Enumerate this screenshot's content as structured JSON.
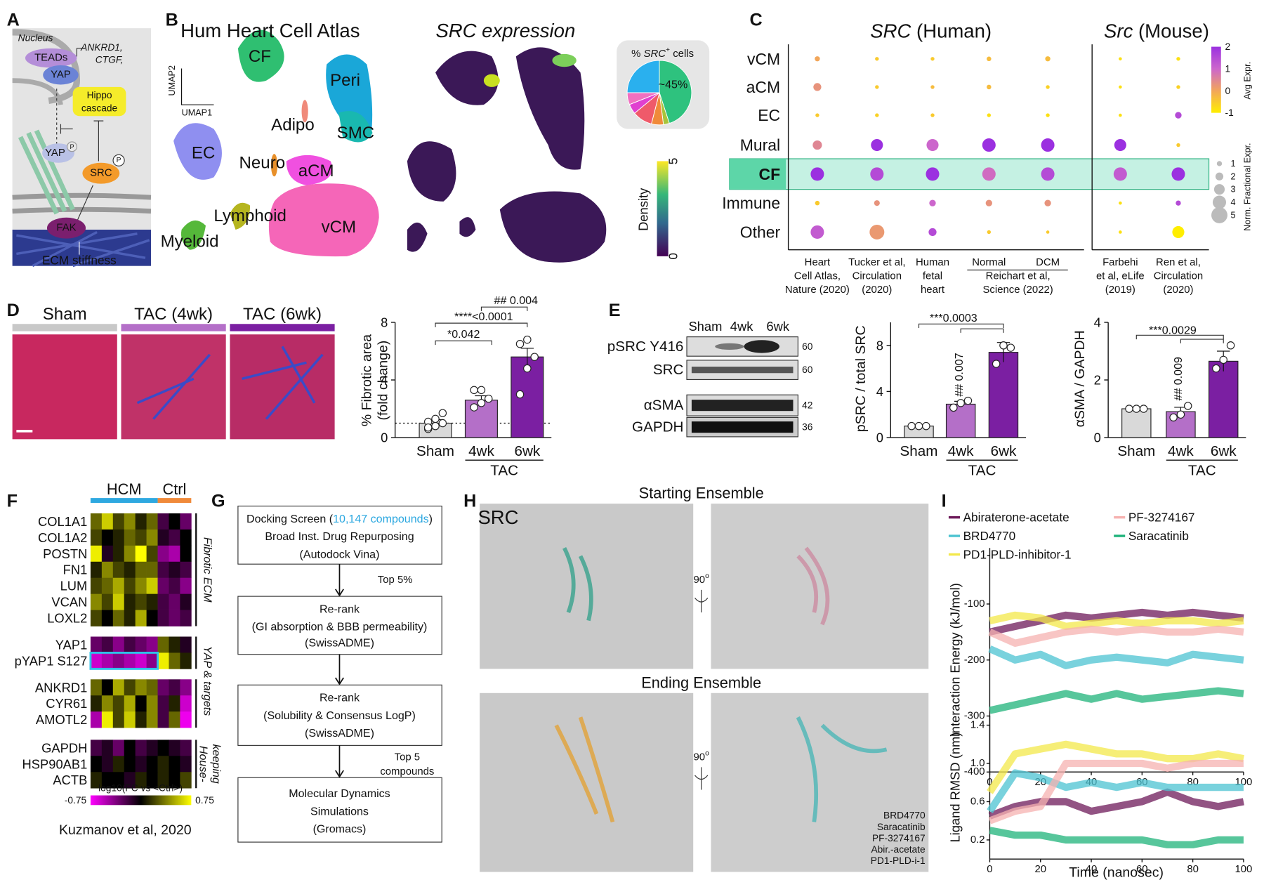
{
  "panel_letters": [
    "A",
    "B",
    "C",
    "D",
    "E",
    "F",
    "G",
    "H",
    "I"
  ],
  "a": {
    "nucleus": "Nucleus",
    "teads": "TEADs",
    "yap": "YAP",
    "targets": [
      "ANKRD1,",
      "CTGF,"
    ],
    "hippo": [
      "Hippo",
      "cascade"
    ],
    "yap_inactive": "YAP",
    "phospho": "P",
    "src": "SRC",
    "fak": "FAK",
    "ecm": "ECM stiffness"
  },
  "b": {
    "title": "Hum Heart Cell Atlas",
    "expr_title": "SRC expression",
    "umap": [
      "UMAP2",
      "UMAP1"
    ],
    "clusters": [
      "CF",
      "Peri",
      "SMC",
      "Adipo",
      "EC",
      "Neuro",
      "aCM",
      "Lymphoid",
      "Myeloid",
      "vCM"
    ],
    "pie": {
      "title": [
        "% ",
        "SRC",
        "+",
        " cells"
      ],
      "label": "~45%",
      "values": [
        45,
        3,
        6,
        10,
        5,
        6,
        25
      ],
      "colors": [
        "#2ec27e",
        "#a8c43a",
        "#f08a3a",
        "#ef5a6a",
        "#e040d0",
        "#f070c0",
        "#2ab0ee"
      ]
    },
    "density": {
      "label": "Density",
      "ticks": [
        0,
        5
      ]
    }
  },
  "c": {
    "title_human": [
      "SRC",
      " (Human)"
    ],
    "title_mouse": [
      "Src",
      " (Mouse)"
    ],
    "rows": [
      "vCM",
      "aCM",
      "EC",
      "Mural",
      "CF",
      "Immune",
      "Other"
    ],
    "columns": [
      [
        "Heart",
        "Cell Atlas,",
        "Nature (2020)"
      ],
      [
        "Tucker et al,",
        "Circulation",
        "(2020)"
      ],
      [
        "Human",
        "fetal",
        "heart"
      ],
      [
        "Normal"
      ],
      [
        "DCM"
      ],
      [
        "Farbehi",
        "et al, eLife",
        "(2019)"
      ],
      [
        "Ren et al,",
        "Circulation",
        "(2020)"
      ]
    ],
    "group_label": [
      "Reichart et al,",
      "Science (2022)"
    ],
    "expr": [
      [
        0,
        -0.5,
        -0.5,
        -0.3,
        -0.3,
        -0.8,
        -0.8
      ],
      [
        0.3,
        -0.5,
        -0.3,
        -0.3,
        -0.6,
        -0.8,
        -0.6
      ],
      [
        -0.5,
        -0.6,
        -0.5,
        -0.8,
        -0.8,
        -0.8,
        1.5
      ],
      [
        0.5,
        2,
        1,
        2,
        2,
        2,
        -0.5
      ],
      [
        2,
        1.5,
        2,
        0.9,
        1.5,
        1.2,
        2
      ],
      [
        -0.5,
        0.3,
        1,
        0.3,
        0.3,
        -0.8,
        1.5
      ],
      [
        1.2,
        0.2,
        1.5,
        -0.5,
        -0.5,
        -0.8,
        -1
      ]
    ],
    "frac": [
      [
        1,
        0.5,
        0.5,
        0.8,
        1,
        0.3,
        0.5
      ],
      [
        2,
        0.5,
        0.5,
        0.8,
        0.5,
        0.3,
        0.5
      ],
      [
        0.5,
        0.5,
        0.5,
        0.5,
        0.5,
        0.3,
        1.5
      ],
      [
        2.5,
        3.5,
        3.5,
        4,
        4,
        3.5,
        0.5
      ],
      [
        4,
        4,
        4,
        4,
        4,
        4,
        4
      ],
      [
        0.8,
        1.2,
        1.5,
        1.5,
        1.5,
        0.3,
        1
      ],
      [
        4,
        4.5,
        2,
        0.5,
        0.3,
        0.3,
        3.5
      ]
    ],
    "expr_scale": {
      "label": "Avg Expr.",
      "lim": [
        -1,
        2
      ],
      "ticks": [
        2,
        1,
        0,
        -1
      ]
    },
    "frac_scale": {
      "label": "Norm. Fractional Expr.",
      "ticks": [
        1,
        2,
        3,
        4,
        5
      ]
    },
    "highlight_row": 4
  },
  "d": {
    "images": [
      "Sham",
      "TAC (4wk)",
      "TAC (6wk)"
    ],
    "chart": {
      "ylabel": [
        "% Fibrotic area",
        "(fold change)"
      ],
      "categories": [
        "Sham",
        "4wk",
        "6wk"
      ],
      "group": "TAC",
      "values": [
        1.0,
        2.6,
        5.6
      ],
      "errors": [
        0.25,
        0.3,
        0.6
      ],
      "points": [
        [
          0.6,
          0.8,
          1.0,
          1.1,
          1.3,
          1.7,
          0.7
        ],
        [
          2.1,
          2.4,
          2.7,
          3.3,
          3.3
        ],
        [
          3.0,
          4.8,
          5.6,
          6.5,
          6.8
        ]
      ],
      "colors": [
        "#d9d9d9",
        "#b46fc8",
        "#7b1fa2"
      ],
      "ylim": [
        0,
        8
      ],
      "yticks": [
        0,
        4,
        8
      ],
      "ref_line": 1,
      "annotations": [
        "*0.042",
        "****<0.0001",
        "## 0.004"
      ]
    }
  },
  "e": {
    "blot": {
      "columns": [
        "Sham",
        "4wk",
        "6wk"
      ],
      "rows": [
        "pSRC Y416",
        "SRC",
        "αSMA",
        "GAPDH"
      ],
      "kda": [
        60,
        60,
        42,
        36
      ]
    },
    "charts": [
      {
        "ylabel": "pSRC / total SRC",
        "categories": [
          "Sham",
          "4wk",
          "6wk"
        ],
        "group": "TAC",
        "values": [
          1.0,
          2.9,
          7.4
        ],
        "errors": [
          0.05,
          0.25,
          0.85
        ],
        "points": [
          [
            1,
            1,
            1
          ],
          [
            2.6,
            3.0,
            3.2
          ],
          [
            6.4,
            8.0,
            7.8
          ]
        ],
        "colors": [
          "#d9d9d9",
          "#b46fc8",
          "#7b1fa2"
        ],
        "ylim": [
          0,
          10
        ],
        "yticks": [
          0,
          4,
          8
        ],
        "annotations": [
          "***0.0003",
          "## 0.007"
        ]
      },
      {
        "ylabel": "αSMA / GAPDH",
        "categories": [
          "Sham",
          "4wk",
          "6wk"
        ],
        "group": "TAC",
        "values": [
          1.0,
          0.9,
          2.65
        ],
        "errors": [
          0.03,
          0.15,
          0.35
        ],
        "points": [
          [
            1,
            1,
            1
          ],
          [
            0.7,
            0.8,
            1.1
          ],
          [
            2.4,
            2.7,
            3.2
          ]
        ],
        "colors": [
          "#d9d9d9",
          "#b46fc8",
          "#7b1fa2"
        ],
        "ylim": [
          0,
          4
        ],
        "yticks": [
          0,
          2,
          4
        ],
        "annotations": [
          "***0.0029",
          "## 0.009"
        ]
      }
    ]
  },
  "f": {
    "groups": [
      "HCM",
      "Ctrl"
    ],
    "blocks": [
      {
        "genes": [
          "COL1A1",
          "COL1A2",
          "POSTN",
          "FN1",
          "LUM",
          "VCAN",
          "LOXL2"
        ],
        "values": [
          [
            0.3,
            0.6,
            0.2,
            0.4,
            0.1,
            0.3,
            -0.2,
            0,
            -0.3
          ],
          [
            0.2,
            0,
            0.1,
            0.3,
            0.2,
            0.4,
            -0.1,
            -0.2,
            0
          ],
          [
            0.7,
            -0.1,
            0.1,
            0.4,
            0.75,
            0.2,
            -0.4,
            -0.5,
            0
          ],
          [
            0.1,
            0.4,
            0.2,
            0.1,
            0.3,
            0.3,
            -0.2,
            -0.1,
            -0.2
          ],
          [
            0.2,
            0.3,
            0.5,
            0.2,
            0.4,
            0.6,
            -0.3,
            -0.2,
            -0.4
          ],
          [
            0.4,
            0.2,
            0.6,
            0.1,
            0.2,
            0.1,
            -0.2,
            -0.3,
            -0.1
          ],
          [
            0.2,
            0,
            0.3,
            0.1,
            0.5,
            0,
            -0.2,
            -0.3,
            -0.2
          ]
        ]
      },
      {
        "genes": [
          "YAP1",
          "pYAP1 S127"
        ],
        "values": [
          [
            -0.3,
            -0.2,
            -0.4,
            -0.2,
            -0.3,
            -0.4,
            0.3,
            0.1,
            -0.1
          ],
          [
            -0.6,
            -0.5,
            -0.4,
            -0.5,
            -0.6,
            -0.4,
            0.7,
            0.3,
            0.1
          ]
        ]
      },
      {
        "genes": [
          "ANKRD1",
          "CYR61",
          "AMOTL2"
        ],
        "values": [
          [
            0.3,
            0,
            0.5,
            0.2,
            0.4,
            0.3,
            -0.3,
            -0.2,
            -0.4
          ],
          [
            0.1,
            0.4,
            0.2,
            0.5,
            0,
            0.4,
            -0.2,
            0.1,
            -0.6
          ],
          [
            -0.5,
            0.7,
            0.2,
            0.6,
            0.1,
            0.4,
            -0.2,
            0.3,
            -0.7
          ]
        ]
      },
      {
        "genes": [
          "GAPDH",
          "HSP90AB1",
          "ACTB"
        ],
        "values": [
          [
            -0.2,
            -0.1,
            -0.3,
            0,
            -0.2,
            -0.1,
            0,
            -0.1,
            -0.2
          ],
          [
            0,
            -0.1,
            0.1,
            0,
            -0.1,
            0,
            0.1,
            0,
            -0.1
          ],
          [
            0.1,
            0,
            0,
            -0.1,
            0.1,
            0,
            0.1,
            0,
            0.2
          ]
        ]
      }
    ],
    "sections": [
      [
        "Fibrotic ECM"
      ],
      [
        "YAP & targets"
      ],
      [
        "House-",
        "keeping"
      ]
    ],
    "scale": {
      "label": "log10(FC vs <Ctrl>)",
      "ticks": [
        -0.75,
        0.75
      ]
    },
    "source": "Kuzmanov et al, 2020"
  },
  "g": {
    "screen": {
      "prefix": "Docking Screen (",
      "count": "10,147 compounds",
      "suffix": ")"
    },
    "steps": [
      [
        "Broad Inst. Drug Repurposing",
        "(Autodock Vina)"
      ],
      [
        "Re-rank",
        "(GI absorption & BBB permeability)",
        "(SwissADME)"
      ],
      [
        "Re-rank",
        "(Solubility & Consensus LogP)",
        "(SwissADME)"
      ],
      [
        "Molecular Dynamics",
        "Simulations",
        "(Gromacs)"
      ]
    ],
    "filters": [
      [
        "Top 5%"
      ],
      [
        "Top 5",
        "compounds"
      ]
    ]
  },
  "h": {
    "starting": "Starting Ensemble",
    "ending": "Ending Ensemble",
    "protein": "SRC",
    "rotation": [
      "90",
      "o"
    ],
    "legend": [
      {
        "name": "BRD4770",
        "color": "#4cc3d1"
      },
      {
        "name": "Saracatinib",
        "color": "#39a845"
      },
      {
        "name": "PF-3274167",
        "color": "#e39a93"
      },
      {
        "name": "Abir.-acetate",
        "color": "#a23fa6"
      },
      {
        "name": "PD1-PLD-i-1",
        "color": "#d6c92a"
      }
    ]
  },
  "i": {
    "x": [
      0,
      10,
      20,
      30,
      40,
      50,
      60,
      70,
      80,
      90,
      100
    ],
    "xlim": [
      0,
      100
    ],
    "xticks": [
      0,
      20,
      40,
      60,
      80,
      100
    ],
    "xlabel": "Time (nanosec)",
    "series": [
      {
        "name": "Abiraterone-acetate",
        "color": "#6d1a5a",
        "energy": [
          -150,
          -140,
          -130,
          -120,
          -125,
          -120,
          -115,
          -120,
          -115,
          -120,
          -125
        ],
        "rmsd": [
          0.45,
          0.55,
          0.6,
          0.6,
          0.5,
          0.55,
          0.6,
          0.7,
          0.6,
          0.55,
          0.6
        ]
      },
      {
        "name": "BRD4770",
        "color": "#4cc3d1",
        "energy": [
          -180,
          -200,
          -190,
          -210,
          -200,
          -195,
          -200,
          -205,
          -190,
          -195,
          -200
        ],
        "rmsd": [
          0.5,
          0.9,
          0.85,
          0.75,
          0.8,
          0.75,
          0.8,
          0.75,
          0.75,
          0.75,
          0.75
        ]
      },
      {
        "name": "PD1-PLD-inhibitor-1",
        "color": "#f3e84a",
        "energy": [
          -130,
          -120,
          -125,
          -140,
          -135,
          -130,
          -135,
          -130,
          -130,
          -135,
          -130
        ],
        "rmsd": [
          0.7,
          1.1,
          1.15,
          1.2,
          1.15,
          1.1,
          1.1,
          1.05,
          1.05,
          1.1,
          1.05
        ]
      },
      {
        "name": "PF-3274167",
        "color": "#f6b2b0",
        "energy": [
          -150,
          -170,
          -160,
          -150,
          -145,
          -150,
          -145,
          -150,
          -150,
          -145,
          -150
        ],
        "rmsd": [
          0.4,
          0.5,
          0.55,
          1.0,
          1.0,
          1.0,
          1.0,
          0.95,
          1.0,
          1.0,
          1.0
        ]
      },
      {
        "name": "Saracatinib",
        "color": "#1fb37a",
        "energy": [
          -290,
          -280,
          -270,
          -260,
          -270,
          -260,
          -270,
          -265,
          -260,
          -255,
          -260
        ],
        "rmsd": [
          0.3,
          0.25,
          0.25,
          0.2,
          0.2,
          0.2,
          0.2,
          0.15,
          0.15,
          0.2,
          0.2
        ]
      }
    ],
    "energy": {
      "ylabel": "Interaction Energy (kJ/mol)",
      "ylim": [
        -400,
        0
      ],
      "yticks": [
        -400,
        -300,
        -200,
        -100
      ]
    },
    "rmsd": {
      "ylabel": "Ligand RMSD (nm)",
      "ylim": [
        0,
        1.5
      ],
      "yticks": [
        0.2,
        0.6,
        {
          "value": 1,
          "label": "1.0"
        },
        1.4
      ]
    }
  }
}
